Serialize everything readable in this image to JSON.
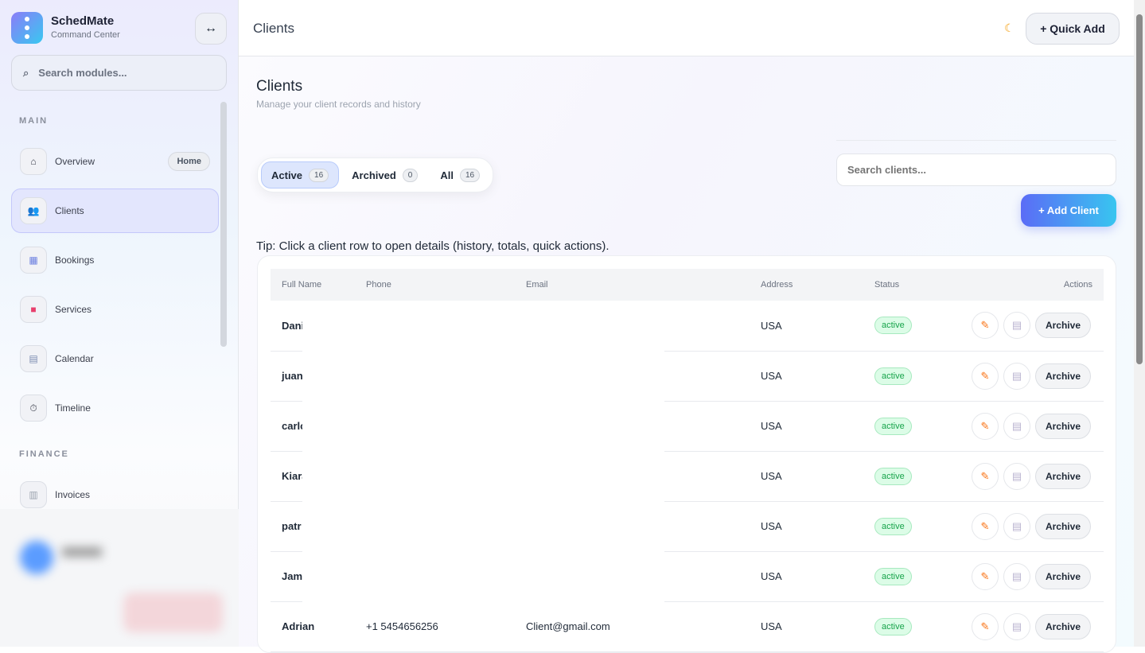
{
  "app": {
    "name": "SchedMate",
    "subtitle": "Command Center",
    "collapse_icon": "↔",
    "search_placeholder": "Search modules..."
  },
  "sidebar": {
    "sections": [
      {
        "label": "MAIN"
      },
      {
        "label": "FINANCE"
      }
    ],
    "items": [
      {
        "label": "Overview",
        "icon": "home-icon",
        "badge": "Home"
      },
      {
        "label": "Clients",
        "icon": "users-icon",
        "active": true
      },
      {
        "label": "Bookings",
        "icon": "calendar-grid-icon"
      },
      {
        "label": "Services",
        "icon": "briefcase-icon"
      },
      {
        "label": "Calendar",
        "icon": "calendar-icon"
      },
      {
        "label": "Timeline",
        "icon": "stopwatch-icon"
      },
      {
        "label": "Invoices",
        "icon": "receipt-icon"
      }
    ]
  },
  "topbar": {
    "title": "Clients",
    "theme_icon": "moon-icon",
    "quick_add": "+ Quick Add"
  },
  "page": {
    "title": "Clients",
    "subtitle": "Manage your client records and history",
    "tip": "Tip: Click a client row to open details (history, totals, quick actions).",
    "tabs": [
      {
        "label": "Active",
        "count": "16",
        "active": true
      },
      {
        "label": "Archived",
        "count": "0"
      },
      {
        "label": "All",
        "count": "16"
      }
    ],
    "search_placeholder": "Search clients...",
    "add_client": "+ Add Client"
  },
  "table": {
    "columns": [
      "Full Name",
      "Phone",
      "Email",
      "Address",
      "Status",
      "Actions"
    ],
    "rows": [
      {
        "name": "Dani",
        "phone": "",
        "email": "",
        "address": "USA",
        "status": "active"
      },
      {
        "name": "juan",
        "phone": "",
        "email": "",
        "address": "USA",
        "status": "active"
      },
      {
        "name": "carlo",
        "phone": "",
        "email": "",
        "address": "USA",
        "status": "active"
      },
      {
        "name": "Kiara",
        "phone": "",
        "email": "",
        "address": "USA",
        "status": "active"
      },
      {
        "name": "patr",
        "phone": "",
        "email": "",
        "address": "USA",
        "status": "active"
      },
      {
        "name": "Jame",
        "phone": "",
        "email": "",
        "address": "USA",
        "status": "active"
      },
      {
        "name": "Adrian",
        "phone": "+1 5454656256",
        "email": "Client@gmail.com",
        "address": "USA",
        "status": "active"
      }
    ],
    "archive_label": "Archive",
    "edit_icon": "pencil-icon",
    "invoice_icon": "receipt-icon"
  },
  "colors": {
    "accent": "#5b6cf6",
    "active_badge": "#16a34a"
  }
}
